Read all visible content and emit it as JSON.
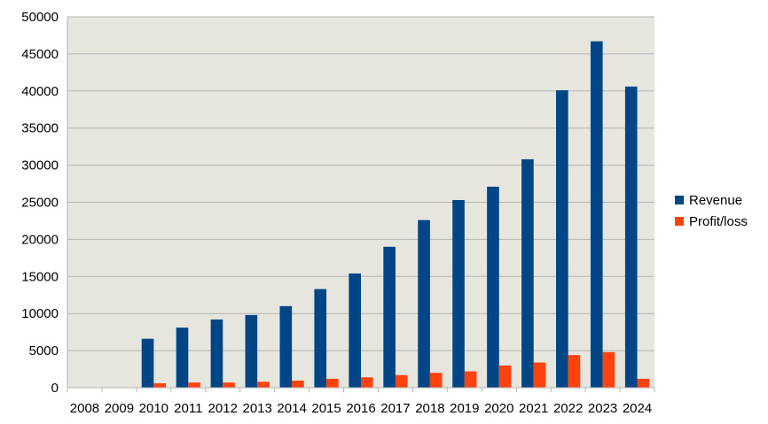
{
  "chart_data": {
    "type": "bar",
    "title": "",
    "xlabel": "",
    "ylabel": "",
    "categories": [
      "2008",
      "2009",
      "2010",
      "2011",
      "2012",
      "2013",
      "2014",
      "2015",
      "2016",
      "2017",
      "2018",
      "2019",
      "2020",
      "2021",
      "2022",
      "2023",
      "2024"
    ],
    "series": [
      {
        "name": "Revenue",
        "color": "#004586",
        "values": [
          null,
          null,
          6600,
          8100,
          9200,
          9800,
          11000,
          13300,
          15400,
          19000,
          22600,
          25300,
          27100,
          30800,
          40100,
          46700,
          40600
        ]
      },
      {
        "name": "Profit/loss",
        "color": "#ff420e",
        "values": [
          null,
          null,
          600,
          700,
          700,
          800,
          950,
          1200,
          1400,
          1700,
          2000,
          2200,
          3000,
          3400,
          4400,
          4800,
          1200
        ]
      }
    ],
    "ylim": [
      0,
      50000
    ],
    "yticks": [
      "0",
      "5000",
      "10000",
      "15000",
      "20000",
      "25000",
      "30000",
      "35000",
      "40000",
      "45000",
      "50000"
    ],
    "grid": true,
    "legend": "right",
    "plot_background": "#e6e6df",
    "grid_color": "#b3b3b3"
  }
}
